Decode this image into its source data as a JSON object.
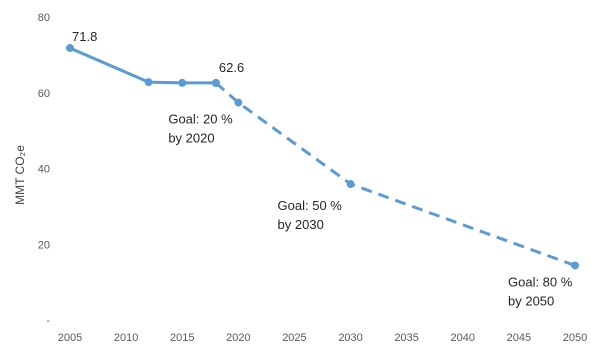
{
  "chart_data": {
    "type": "line",
    "title": "",
    "xlabel": "",
    "ylabel": "MMT CO₂e",
    "xlim": [
      2005,
      2050
    ],
    "ylim": [
      0,
      80
    ],
    "x_ticks": [
      "2005",
      "2010",
      "2015",
      "2020",
      "2025",
      "2030",
      "2035",
      "2040",
      "2045",
      "2050"
    ],
    "y_ticks": [
      "-",
      "20",
      "40",
      "60",
      "80"
    ],
    "grid": false,
    "line_color": "#5B9BD5",
    "series": [
      {
        "style": "solid",
        "x": [
          2005,
          2012,
          2015,
          2018
        ],
        "y": [
          71.8,
          62.8,
          62.6,
          62.6
        ]
      },
      {
        "style": "dashed",
        "x": [
          2018,
          2020,
          2030,
          2050
        ],
        "y": [
          62.6,
          57.4,
          35.9,
          14.4
        ]
      }
    ],
    "data_labels": [
      {
        "text": "71.8",
        "x": 2005,
        "y": 71.8
      },
      {
        "text": "62.6",
        "x": 2018,
        "y": 62.6
      }
    ],
    "annotations": [
      {
        "lines": [
          "Goal: 20 %",
          "by 2020"
        ],
        "x": 2020,
        "y": 57.4
      },
      {
        "lines": [
          "Goal: 50 %",
          "by 2030"
        ],
        "x": 2030,
        "y": 35.9
      },
      {
        "lines": [
          "Goal: 80 %",
          "by 2050"
        ],
        "x": 2050,
        "y": 14.4
      }
    ]
  }
}
